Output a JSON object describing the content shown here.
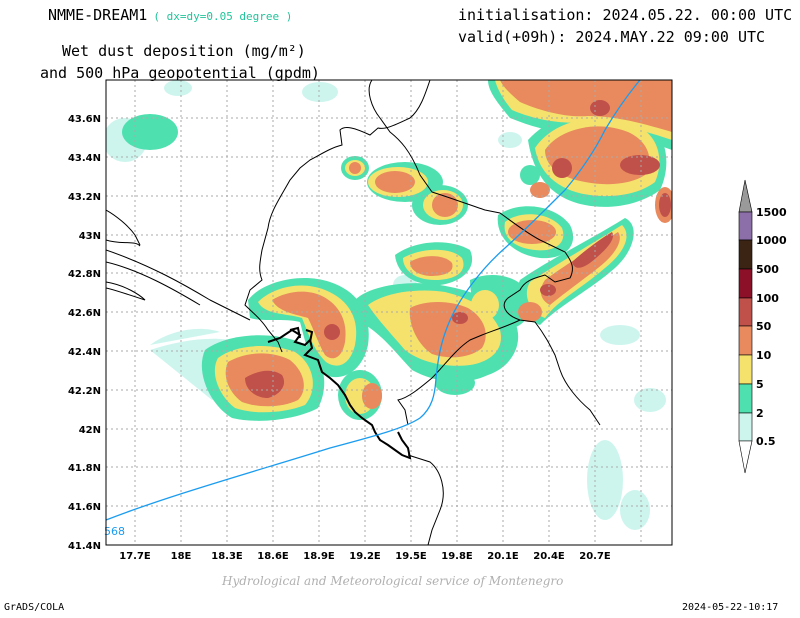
{
  "header": {
    "model_name": "NMME-DREAM1",
    "resolution": "( dx=dy=0.05 degree )",
    "initialisation": "initialisation: 2024.05.22. 00:00 UTC",
    "valid": "valid(+09h): 2024.MAY.22 09:00 UTC",
    "variable_line1": "Wet dust deposition (mg/m²)",
    "variable_line2": "and 500 hPa geopotential (gpdm)"
  },
  "map": {
    "lon_ticks": [
      "17.7E",
      "18E",
      "18.3E",
      "18.6E",
      "18.9E",
      "19.2E",
      "19.5E",
      "19.8E",
      "20.1E",
      "20.4E",
      "20.7E"
    ],
    "lat_ticks": [
      "43.6N",
      "43.4N",
      "43.2N",
      "43N",
      "42.8N",
      "42.6N",
      "42.4N",
      "42.2N",
      "42N",
      "41.8N",
      "41.6N",
      "41.4N"
    ],
    "contour_label": "568",
    "contour_color": "#1a9cf0",
    "grid": true
  },
  "legend": {
    "levels": [
      "1500",
      "1000",
      "500",
      "100",
      "50",
      "10",
      "5",
      "2",
      "0.5"
    ],
    "colors": {
      "c0": "#cdf5ee",
      "c1": "#4fe0b0",
      "c2": "#f5e26c",
      "c3": "#e88a5e",
      "c4": "#c0504a",
      "c5": "#8c1028",
      "c6": "#3c2414",
      "c7": "#8c6ea8",
      "c8": "#9a9a9a"
    }
  },
  "footer": {
    "credit": "Hydrological and Meteorological service of Montenegro",
    "software": "GrADS/COLA",
    "timestamp": "2024-05-22-10:17"
  }
}
